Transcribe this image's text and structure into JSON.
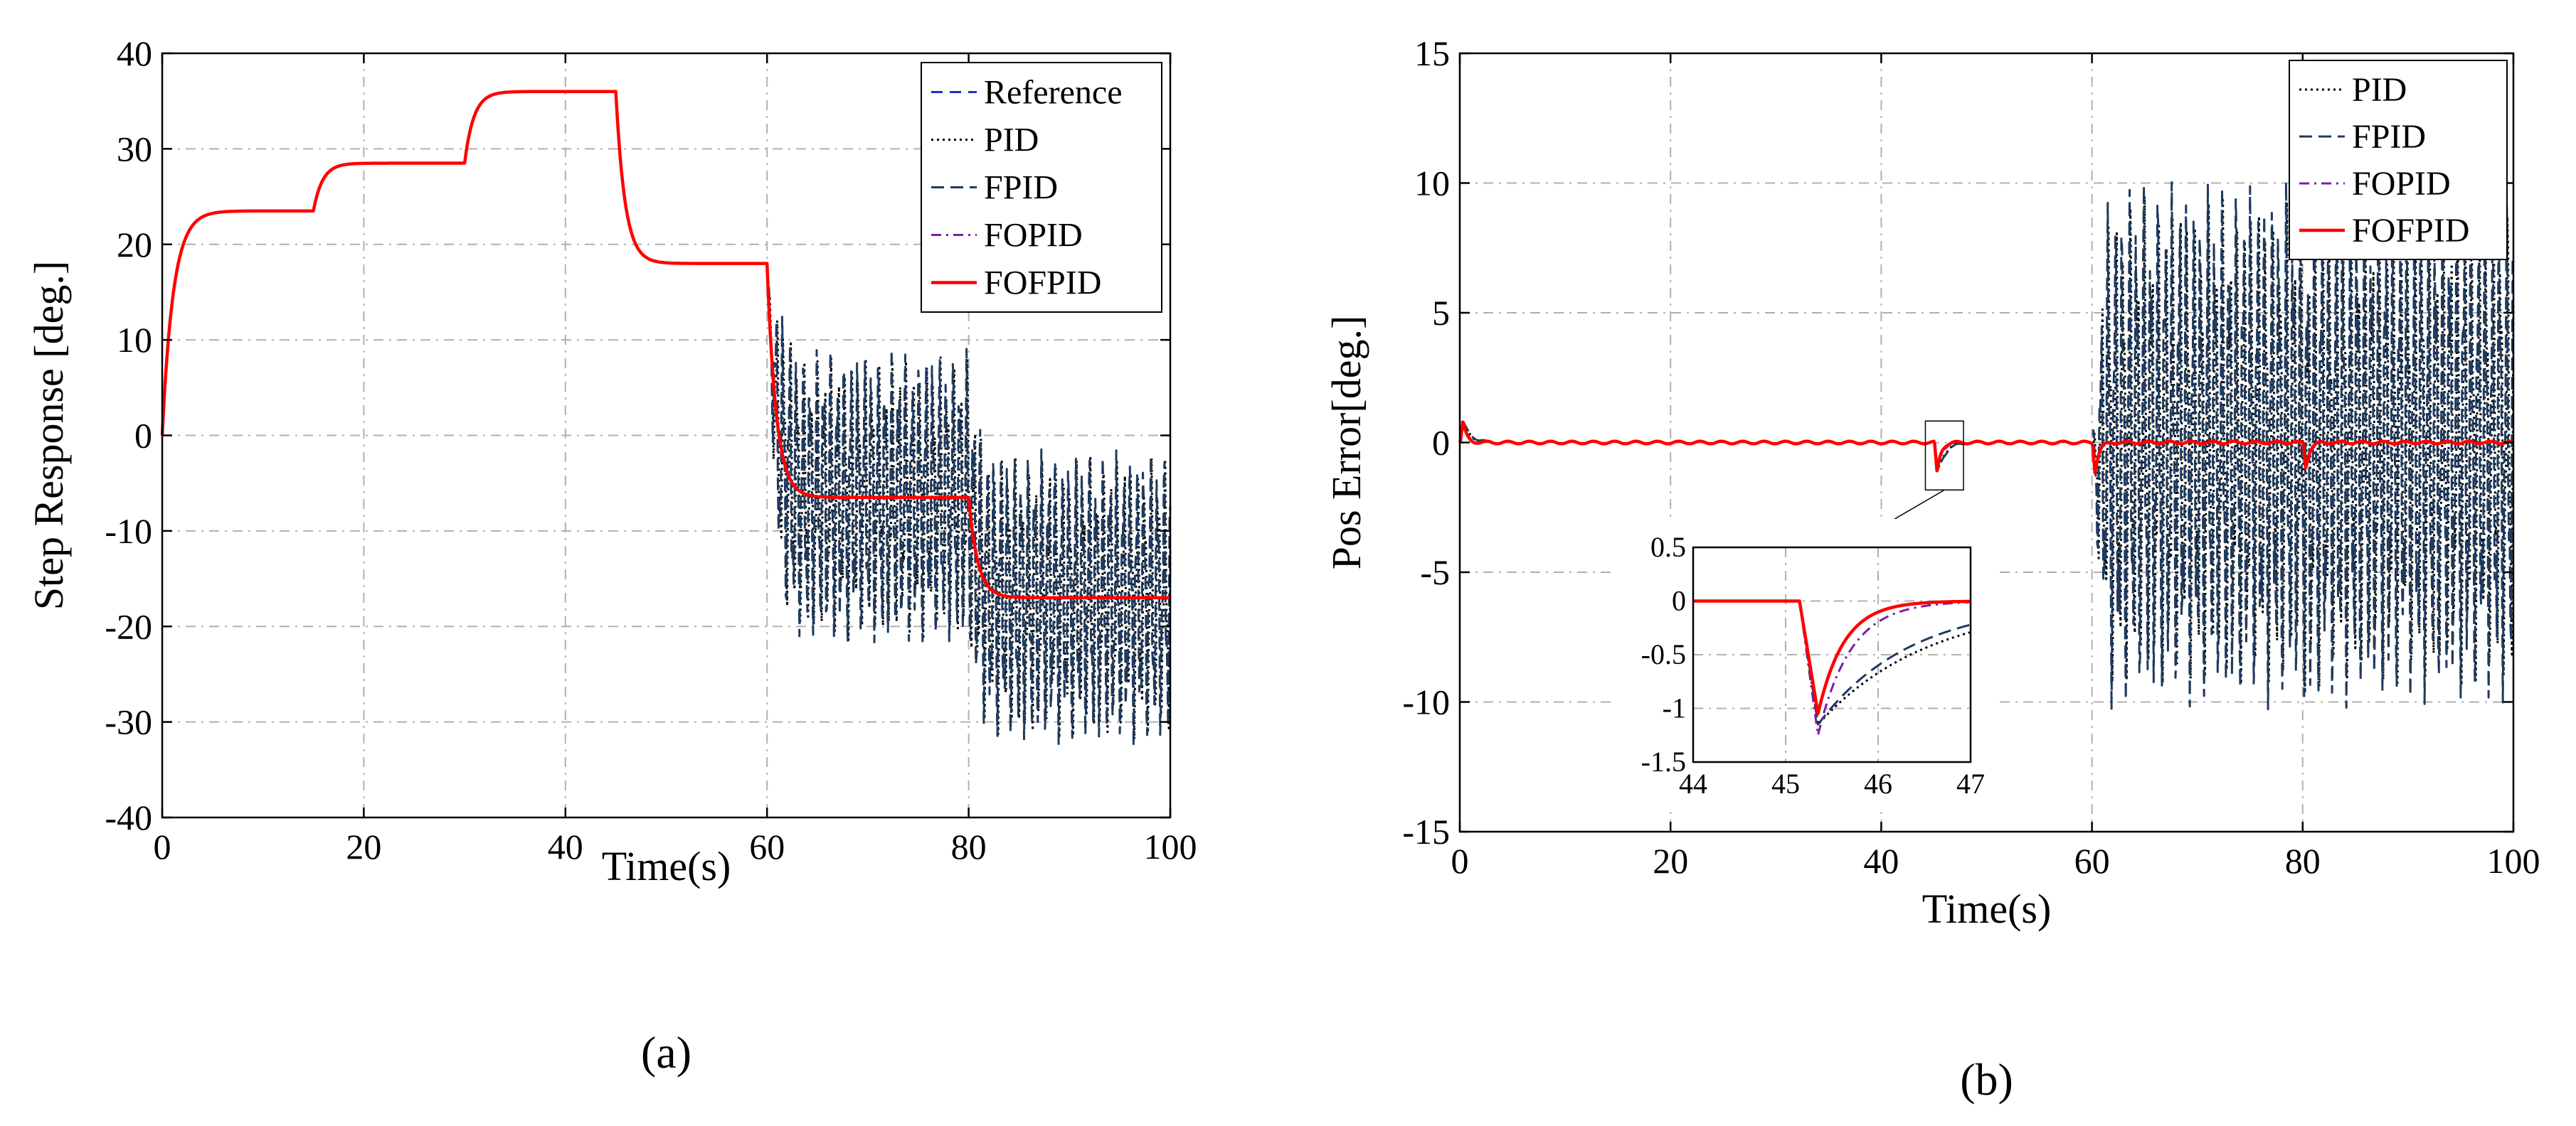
{
  "colors": {
    "Reference": "#1f2fd1",
    "PID": "#000000",
    "FPID": "#1e3a5f",
    "FOPID": "#7a1fa2",
    "FOFPID": "#ff0000"
  },
  "chart_data": [
    {
      "type": "line",
      "caption": "(a)",
      "xlabel": "Time(s)",
      "ylabel": "Step Response [deg.]",
      "xlim": [
        0,
        100
      ],
      "ylim": [
        -40,
        40
      ],
      "xticks": [
        0,
        20,
        40,
        60,
        80,
        100
      ],
      "yticks": [
        -40,
        -30,
        -20,
        -10,
        0,
        10,
        20,
        30,
        40
      ],
      "xticklabels": [
        "0",
        "20",
        "40",
        "60",
        "80",
        "100"
      ],
      "yticklabels": [
        "-40",
        "-30",
        "-20",
        "-10",
        "0",
        "10",
        "20",
        "30",
        "40"
      ],
      "grid": true,
      "legend_position": "top-right",
      "legend": [
        "Reference",
        "PID",
        "FPID",
        "FOPID",
        "FOFPID"
      ],
      "reference_steps": [
        {
          "t": 0,
          "v": 23.5
        },
        {
          "t": 15,
          "v": 28.5
        },
        {
          "t": 30,
          "v": 36
        },
        {
          "t": 45,
          "v": 18
        },
        {
          "t": 60,
          "v": -6.5
        },
        {
          "t": 80,
          "v": -17
        }
      ],
      "oscillation": {
        "start": 60,
        "end": 100,
        "amplitude_deg": 13,
        "series": [
          "PID",
          "FPID"
        ]
      }
    },
    {
      "type": "line",
      "caption": "(b)",
      "xlabel": "Time(s)",
      "ylabel": "Pos Error[deg.]",
      "xlim": [
        0,
        100
      ],
      "ylim": [
        -15,
        15
      ],
      "xticks": [
        0,
        20,
        40,
        60,
        80,
        100
      ],
      "yticks": [
        -15,
        -10,
        -5,
        0,
        5,
        10,
        15
      ],
      "xticklabels": [
        "0",
        "20",
        "40",
        "60",
        "80",
        "100"
      ],
      "yticklabels": [
        "-15",
        "-10",
        "-5",
        "0",
        "5",
        "10",
        "15"
      ],
      "grid": true,
      "legend_position": "top-right",
      "legend": [
        "PID",
        "FPID",
        "FOPID",
        "FOFPID"
      ],
      "error_spikes": [
        {
          "t": 0.3,
          "v": 0.8
        },
        {
          "t": 45.3,
          "v": -1.2
        },
        {
          "t": 60.3,
          "v": -1.2
        },
        {
          "t": 80.3,
          "v": -1.0
        }
      ],
      "oscillation": {
        "start": 60,
        "end": 100,
        "amplitude_deg": 9.5,
        "series": [
          "PID",
          "FPID"
        ]
      },
      "inset": {
        "xlim": [
          44,
          47
        ],
        "ylim": [
          -1.5,
          0.5
        ],
        "xticks": [
          44,
          45,
          46,
          47
        ],
        "yticks": [
          -1.5,
          -1,
          -0.5,
          0,
          0.5
        ],
        "xticklabels": [
          "44",
          "45",
          "46",
          "47"
        ],
        "yticklabels": [
          "-1.5",
          "-1",
          "-0.5",
          "0",
          "0.5"
        ],
        "zoom_region": {
          "x": [
            45,
            47
          ],
          "y": [
            -1.5,
            0.5
          ]
        },
        "minima": {
          "PID": -1.15,
          "FPID": -1.15,
          "FOPID": -1.25,
          "FOFPID": -1.05
        }
      }
    }
  ]
}
